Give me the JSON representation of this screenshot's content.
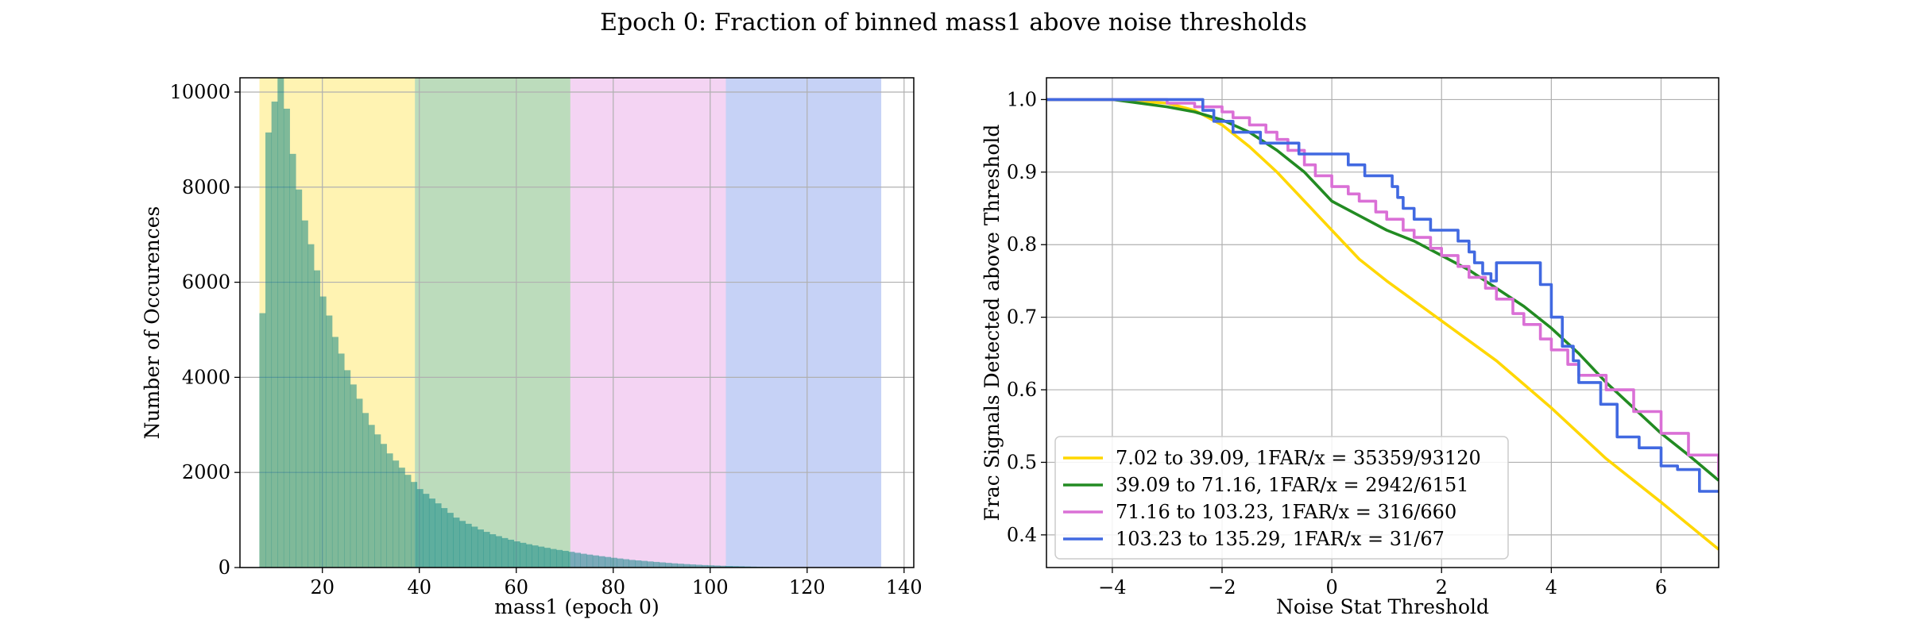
{
  "figure_title": "Epoch 0: Fraction of binned mass1 above noise thresholds",
  "chart_data": [
    {
      "type": "bar",
      "subtype": "histogram",
      "xlabel": "mass1 (epoch 0)",
      "ylabel": "Number of Occurences",
      "xlim": [
        3,
        142
      ],
      "ylim": [
        0,
        10300
      ],
      "xticks": [
        20,
        40,
        60,
        80,
        100,
        120,
        140
      ],
      "yticks": [
        0,
        2000,
        4000,
        6000,
        8000,
        10000
      ],
      "grid": true,
      "bin_width": 1.25,
      "bin_start": 7.0,
      "values": [
        5350,
        9150,
        9800,
        10300,
        9650,
        8700,
        7950,
        7300,
        6800,
        6250,
        5700,
        5300,
        4850,
        4500,
        4150,
        3850,
        3550,
        3250,
        3000,
        2800,
        2600,
        2400,
        2250,
        2100,
        1950,
        1800,
        1650,
        1550,
        1450,
        1350,
        1250,
        1150,
        1050,
        980,
        920,
        860,
        800,
        750,
        700,
        660,
        620,
        585,
        550,
        520,
        490,
        465,
        440,
        415,
        390,
        370,
        350,
        330,
        310,
        290,
        272,
        255,
        238,
        222,
        205,
        190,
        175,
        160,
        150,
        140,
        128,
        118,
        108,
        98,
        88,
        80,
        72,
        65,
        58,
        52,
        47,
        42,
        37,
        33,
        29,
        26,
        22,
        19,
        16,
        14,
        12,
        10,
        8,
        6,
        5,
        4,
        3,
        2,
        2,
        1,
        1,
        1
      ],
      "mass_bins": [
        {
          "range": [
            7.02,
            39.09
          ],
          "color": "#ffd700"
        },
        {
          "range": [
            39.09,
            71.16
          ],
          "color": "#228b22"
        },
        {
          "range": [
            71.16,
            103.23
          ],
          "color": "#da70d6"
        },
        {
          "range": [
            103.23,
            135.29
          ],
          "color": "#4169e1"
        }
      ]
    },
    {
      "type": "line",
      "xlabel": "Noise Stat Threshold",
      "ylabel": "Frac Signals Detected above Threshold",
      "xlim": [
        -5.2,
        7.05
      ],
      "ylim": [
        0.355,
        1.03
      ],
      "xticks": [
        -4,
        -2,
        0,
        2,
        4,
        6
      ],
      "xtick_labels": [
        "−4",
        "−2",
        "0",
        "2",
        "4",
        "6"
      ],
      "yticks": [
        0.4,
        0.5,
        0.6,
        0.7,
        0.8,
        0.9,
        1.0
      ],
      "ytick_labels": [
        "0.4",
        "0.5",
        "0.6",
        "0.7",
        "0.8",
        "0.9",
        "1.0"
      ],
      "grid": true,
      "legend_position": "lower-left",
      "series": [
        {
          "name": "7.02 to 39.09, 1FAR/x = 35359/93120",
          "color": "#ffd700",
          "step": false,
          "x": [
            -5.2,
            -4,
            -3,
            -2.5,
            -2,
            -1.5,
            -1,
            -0.5,
            0,
            0.5,
            1,
            2,
            3,
            4,
            5,
            6,
            7.05
          ],
          "y": [
            1.0,
            1.0,
            0.995,
            0.985,
            0.965,
            0.935,
            0.9,
            0.86,
            0.82,
            0.78,
            0.75,
            0.695,
            0.64,
            0.575,
            0.505,
            0.445,
            0.38
          ]
        },
        {
          "name": "39.09 to 71.16, 1FAR/x = 2942/6151",
          "color": "#228b22",
          "step": false,
          "x": [
            -5.2,
            -4,
            -3,
            -2.5,
            -2,
            -1.5,
            -1,
            -0.5,
            0,
            0.5,
            1,
            1.5,
            2,
            2.5,
            3,
            3.5,
            4,
            4.5,
            5,
            5.5,
            6,
            6.5,
            7.05
          ],
          "y": [
            1.0,
            1.0,
            0.99,
            0.983,
            0.972,
            0.955,
            0.93,
            0.9,
            0.86,
            0.84,
            0.82,
            0.805,
            0.785,
            0.765,
            0.74,
            0.715,
            0.685,
            0.65,
            0.61,
            0.575,
            0.54,
            0.51,
            0.475
          ]
        },
        {
          "name": "71.16 to 103.23, 1FAR/x = 316/660",
          "color": "#da70d6",
          "step": true,
          "x": [
            -5.2,
            -3,
            -2.5,
            -2,
            -1.8,
            -1.5,
            -1.2,
            -1,
            -0.8,
            -0.5,
            -0.3,
            0,
            0.3,
            0.5,
            0.8,
            1,
            1.3,
            1.5,
            1.8,
            2,
            2.3,
            2.5,
            2.8,
            3,
            3.3,
            3.5,
            3.8,
            4,
            4.3,
            4.5,
            5,
            5.5,
            6,
            6.5,
            7.05
          ],
          "y": [
            1.0,
            0.995,
            0.99,
            0.983,
            0.975,
            0.965,
            0.955,
            0.945,
            0.93,
            0.91,
            0.895,
            0.88,
            0.87,
            0.86,
            0.845,
            0.835,
            0.82,
            0.81,
            0.795,
            0.785,
            0.77,
            0.755,
            0.74,
            0.725,
            0.705,
            0.69,
            0.67,
            0.655,
            0.635,
            0.62,
            0.6,
            0.57,
            0.54,
            0.51,
            0.48
          ]
        },
        {
          "name": "103.23 to 135.29, 1FAR/x = 31/67",
          "color": "#4169e1",
          "step": true,
          "x": [
            -5.2,
            -2.35,
            -2.15,
            -1.8,
            -1.3,
            -0.6,
            0.3,
            0.6,
            1.1,
            1.2,
            1.3,
            1.5,
            1.8,
            2.3,
            2.5,
            2.6,
            2.75,
            2.9,
            3.0,
            3.8,
            4.0,
            4.2,
            4.4,
            4.5,
            4.9,
            5.2,
            5.6,
            6.0,
            6.3,
            6.7,
            7.05
          ],
          "y": [
            1.0,
            0.985,
            0.97,
            0.955,
            0.94,
            0.925,
            0.91,
            0.895,
            0.88,
            0.865,
            0.85,
            0.835,
            0.82,
            0.805,
            0.79,
            0.775,
            0.76,
            0.75,
            0.775,
            0.745,
            0.7,
            0.66,
            0.64,
            0.61,
            0.58,
            0.535,
            0.52,
            0.495,
            0.49,
            0.46,
            0.46
          ]
        }
      ]
    }
  ]
}
